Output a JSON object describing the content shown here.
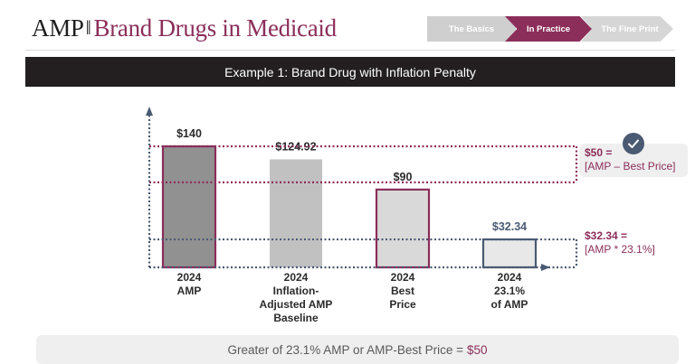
{
  "header": {
    "logo_prefix": "AMP",
    "logo_separator": "||",
    "logo_title": "Brand Drugs in Medicaid"
  },
  "nav": {
    "items": [
      {
        "label": "The Basics",
        "active": false
      },
      {
        "label": "In Practice",
        "active": true
      },
      {
        "label": "The Fine Print",
        "active": false
      }
    ]
  },
  "title_bar": "Example 1: Brand Drug with Inflation Penalty",
  "colors": {
    "brand": "#8b2e5a",
    "slate": "#4a5a73",
    "dark_bar": "#919191",
    "mid_bar": "#c1c1c1",
    "light_bar": "#d9d9d9",
    "lightest_bar": "#e8e8e8"
  },
  "chart_data": {
    "type": "bar",
    "title": "",
    "xlabel": "",
    "ylabel": "",
    "ylim": [
      0,
      150
    ],
    "grid": false,
    "categories": [
      [
        "2024",
        "AMP"
      ],
      [
        "2024",
        "Inflation-",
        "Adjusted  AMP",
        "Baseline"
      ],
      [
        "2024",
        "Best",
        "Price"
      ],
      [
        "2024",
        "23.1%",
        "of AMP"
      ]
    ],
    "values": [
      140,
      124.92,
      90,
      32.34
    ],
    "value_labels": [
      "$140",
      "$124.92",
      "$90",
      "$32.34"
    ],
    "reference_lines": [
      {
        "name": "AMP",
        "value": 140
      },
      {
        "name": "Best Price",
        "value": 90
      },
      {
        "name": "23.1% of AMP",
        "value": 32.34
      }
    ],
    "annotations": [
      {
        "label": "$50 =",
        "detail": "[AMP – Best Price]",
        "from": 90,
        "to": 140,
        "selected": true
      },
      {
        "label": "$32.34 =",
        "detail": "[AMP * 23.1%]",
        "from": 0,
        "to": 32.34,
        "selected": false
      }
    ]
  },
  "summary": {
    "text": "Greater of 23.1% AMP or AMP-Best Price =",
    "result": "$50"
  }
}
